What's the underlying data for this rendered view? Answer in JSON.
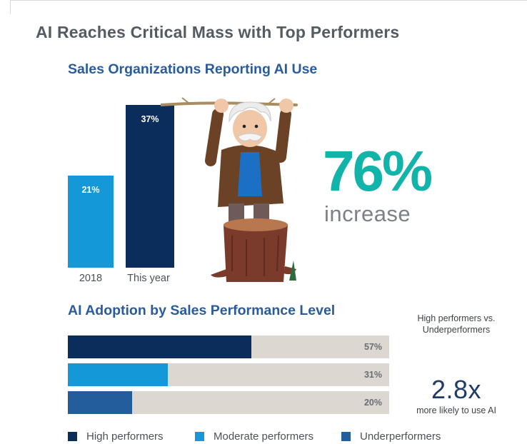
{
  "title": "AI Reaches Critical Mass with Top Performers",
  "colors": {
    "high": "#0b2d5c",
    "moderate": "#1598d8",
    "under": "#245d9c",
    "track": "#ddd7d1",
    "accent": "#12b3a8"
  },
  "chart_data": [
    {
      "type": "bar",
      "title": "Sales Organizations Reporting AI Use",
      "categories": [
        "2018",
        "This year"
      ],
      "values": [
        21,
        37
      ],
      "value_labels": [
        "21%",
        "37%"
      ],
      "unit": "%",
      "ylim": [
        0,
        37
      ]
    },
    {
      "type": "bar",
      "orientation": "horizontal",
      "title": "AI Adoption by Sales Performance Level",
      "categories": [
        "High performers",
        "Moderate performers",
        "Underperformers"
      ],
      "values": [
        57,
        31,
        20
      ],
      "value_labels": [
        "57%",
        "31%",
        "20%"
      ],
      "unit": "%",
      "xlim": [
        0,
        100
      ],
      "legend": "bottom"
    }
  ],
  "increase": {
    "value": "76%",
    "label": "increase"
  },
  "comparison": {
    "heading_line1": "High performers vs.",
    "heading_line2": "Underperformers",
    "multiplier": "2.8x",
    "caption": "more likely to use AI"
  },
  "mascot": {
    "icon": "mascot-character-icon"
  }
}
